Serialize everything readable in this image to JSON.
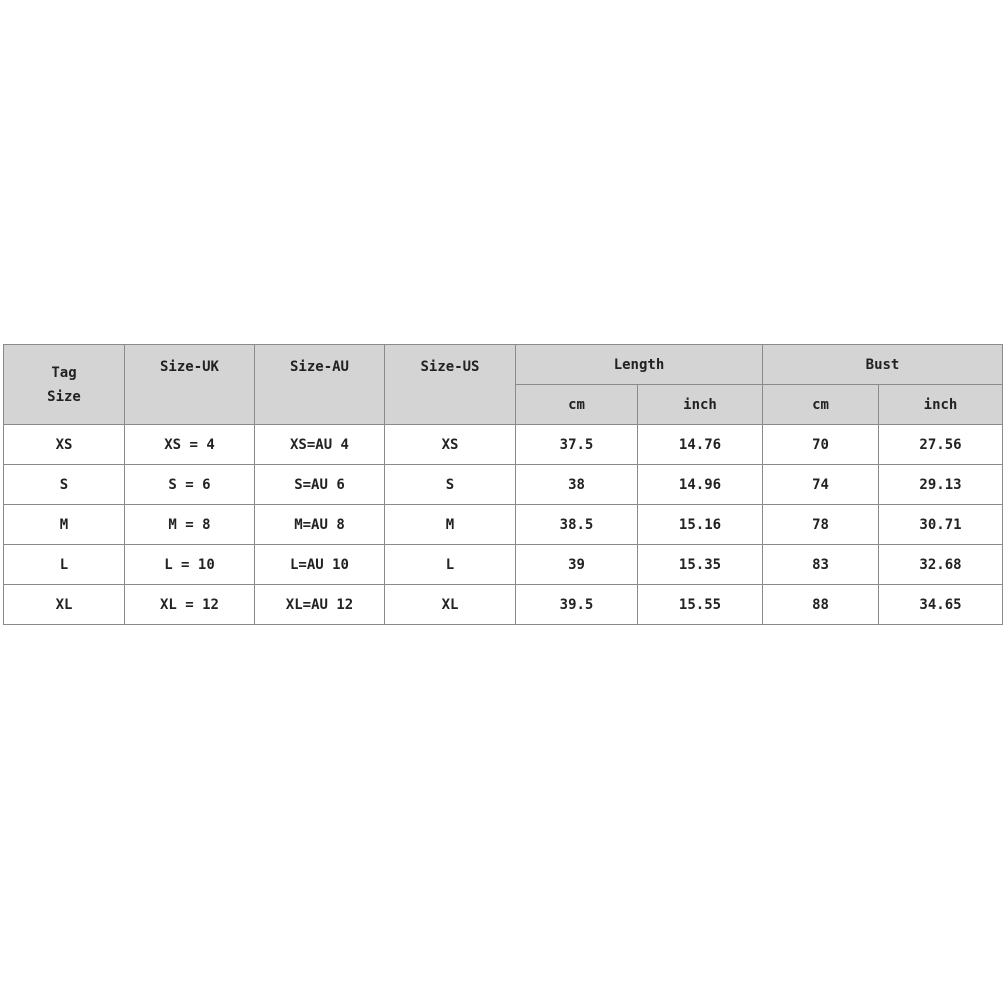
{
  "table": {
    "headers": {
      "tag_size": [
        "Tag",
        "Size"
      ],
      "size_uk": "Size-UK",
      "size_au": "Size-AU",
      "size_us": "Size-US",
      "length": "Length",
      "bust": "Bust",
      "sub": [
        "cm",
        "inch",
        "cm",
        "inch"
      ]
    },
    "rows": [
      [
        "XS",
        "XS = 4",
        "XS=AU 4",
        "XS",
        "37.5",
        "14.76",
        "70",
        "27.56"
      ],
      [
        "S",
        "S = 6",
        "S=AU 6",
        "S",
        "38",
        "14.96",
        "74",
        "29.13"
      ],
      [
        "M",
        "M = 8",
        "M=AU 8",
        "M",
        "38.5",
        "15.16",
        "78",
        "30.71"
      ],
      [
        "L",
        "L = 10",
        "L=AU 10",
        "L",
        "39",
        "15.35",
        "83",
        "32.68"
      ],
      [
        "XL",
        "XL = 12",
        "XL=AU 12",
        "XL",
        "39.5",
        "15.55",
        "88",
        "34.65"
      ]
    ]
  }
}
